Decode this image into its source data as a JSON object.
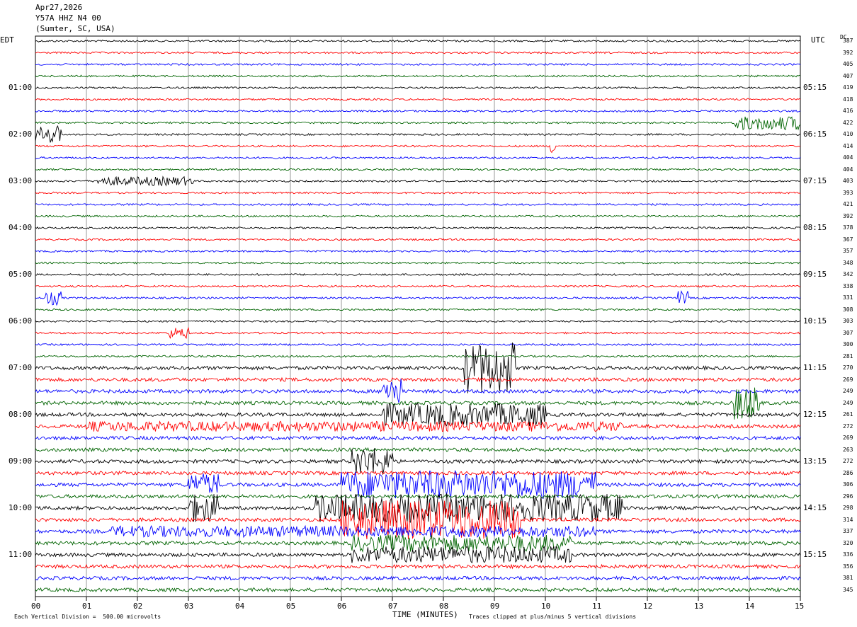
{
  "header": {
    "date": "Apr27,2026",
    "station": "Y57A HHZ N4 00",
    "location": "(Sumter, SC, USA)"
  },
  "axes": {
    "left_tz": "EDT",
    "right_tz": "UTC",
    "dc_label": "DC",
    "xlabel": "TIME (MINUTES)",
    "x_ticks": [
      "00",
      "01",
      "02",
      "03",
      "04",
      "05",
      "06",
      "07",
      "08",
      "09",
      "10",
      "11",
      "12",
      "13",
      "14",
      "15"
    ],
    "left_hours": [
      "01:00",
      "02:00",
      "03:00",
      "04:00",
      "05:00",
      "06:00",
      "07:00",
      "08:00",
      "09:00",
      "10:00",
      "11:00"
    ],
    "right_hours": [
      "05:15",
      "06:15",
      "07:15",
      "08:15",
      "09:15",
      "10:15",
      "11:15",
      "12:15",
      "13:15",
      "14:15",
      "15:15"
    ]
  },
  "footer": {
    "scale_note": "Each Vertical Division =  500.00 microvolts",
    "clip_note": "Traces clipped at plus/minus 5 vertical divisions"
  },
  "dc_values": [
    "387",
    "392",
    "405",
    "407",
    "419",
    "418",
    "416",
    "422",
    "410",
    "414",
    "404",
    "404",
    "403",
    "393",
    "421",
    "392",
    "378",
    "367",
    "357",
    "348",
    "342",
    "338",
    "331",
    "308",
    "303",
    "307",
    "300",
    "281",
    "270",
    "269",
    "249",
    "249",
    "261",
    "272",
    "269",
    "263",
    "272",
    "286",
    "306",
    "296",
    "298",
    "314",
    "337",
    "320",
    "336",
    "356",
    "381",
    "345"
  ],
  "colors": {
    "cycle": [
      "#000000",
      "#ff0000",
      "#0000ff",
      "#006400"
    ],
    "grid": "#808080"
  },
  "chart_data": {
    "type": "helicorder",
    "minutes_per_line": 15,
    "line_count": 48,
    "x_range_minutes": [
      0,
      15
    ],
    "events": [
      {
        "line": 8,
        "from_min": 0.0,
        "to_min": 0.5,
        "amp": 3
      },
      {
        "line": 7,
        "from_min": 13.7,
        "to_min": 15.0,
        "amp": 2.5
      },
      {
        "line": 9,
        "from_min": 10.1,
        "to_min": 10.2,
        "amp": 3
      },
      {
        "line": 12,
        "from_min": 1.2,
        "to_min": 3.1,
        "amp": 1.6
      },
      {
        "line": 22,
        "from_min": 0.2,
        "to_min": 0.5,
        "amp": 2.5
      },
      {
        "line": 22,
        "from_min": 12.6,
        "to_min": 12.8,
        "amp": 2.5
      },
      {
        "line": 25,
        "from_min": 2.6,
        "to_min": 3.0,
        "amp": 2
      },
      {
        "line": 28,
        "from_min": 8.4,
        "to_min": 9.4,
        "amp": 9
      },
      {
        "line": 30,
        "from_min": 6.8,
        "to_min": 7.2,
        "amp": 5
      },
      {
        "line": 31,
        "from_min": 13.7,
        "to_min": 14.2,
        "amp": 6
      },
      {
        "line": 32,
        "from_min": 6.8,
        "to_min": 10.0,
        "amp": 4
      },
      {
        "line": 33,
        "from_min": 1.0,
        "to_min": 11.5,
        "amp": 1.8
      },
      {
        "line": 36,
        "from_min": 6.2,
        "to_min": 7.0,
        "amp": 5
      },
      {
        "line": 38,
        "from_min": 3.0,
        "to_min": 3.6,
        "amp": 4
      },
      {
        "line": 38,
        "from_min": 6.0,
        "to_min": 11.0,
        "amp": 5
      },
      {
        "line": 40,
        "from_min": 3.0,
        "to_min": 3.6,
        "amp": 5
      },
      {
        "line": 40,
        "from_min": 5.5,
        "to_min": 11.5,
        "amp": 5
      },
      {
        "line": 41,
        "from_min": 6.0,
        "to_min": 9.5,
        "amp": 7
      },
      {
        "line": 42,
        "from_min": 1.5,
        "to_min": 11.0,
        "amp": 2
      },
      {
        "line": 43,
        "from_min": 6.2,
        "to_min": 10.5,
        "amp": 3
      },
      {
        "line": 44,
        "from_min": 6.2,
        "to_min": 10.5,
        "amp": 3
      }
    ]
  }
}
